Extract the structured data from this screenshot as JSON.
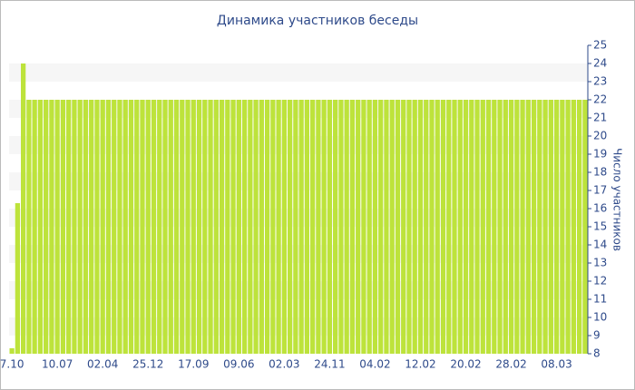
{
  "chart_data": {
    "type": "bar",
    "title": "Динамика участников беседы",
    "y_label": "Число участников",
    "categories": [
      "7.10",
      null,
      null,
      null,
      null,
      null,
      null,
      null,
      "10.07",
      null,
      null,
      null,
      null,
      null,
      null,
      null,
      "02.04",
      null,
      null,
      null,
      null,
      null,
      null,
      null,
      "25.12",
      null,
      null,
      null,
      null,
      null,
      null,
      null,
      "17.09",
      null,
      null,
      null,
      null,
      null,
      null,
      null,
      "09.06",
      null,
      null,
      null,
      null,
      null,
      null,
      null,
      "02.03",
      null,
      null,
      null,
      null,
      null,
      null,
      null,
      "24.11",
      null,
      null,
      null,
      null,
      null,
      null,
      null,
      "04.02",
      null,
      null,
      null,
      null,
      null,
      null,
      null,
      "12.02",
      null,
      null,
      null,
      null,
      null,
      null,
      null,
      "20.02",
      null,
      null,
      null,
      null,
      null,
      null,
      null,
      "28.02",
      null,
      null,
      null,
      null,
      null,
      null,
      null,
      "08.03",
      null,
      null,
      null,
      null,
      null
    ],
    "values": [
      8.3,
      16.3,
      24,
      22,
      22,
      22,
      22,
      22,
      22,
      22,
      22,
      22,
      22,
      22,
      22,
      22,
      22,
      22,
      22,
      22,
      22,
      22,
      22,
      22,
      22,
      22,
      22,
      22,
      22,
      22,
      22,
      22,
      22,
      22,
      22,
      22,
      22,
      22,
      22,
      22,
      22,
      22,
      22,
      22,
      22,
      22,
      22,
      22,
      22,
      22,
      22,
      22,
      22,
      22,
      22,
      22,
      22,
      22,
      22,
      22,
      22,
      22,
      22,
      22,
      22,
      22,
      22,
      22,
      22,
      22,
      22,
      22,
      22,
      22,
      22,
      22,
      22,
      22,
      22,
      22,
      22,
      22,
      22,
      22,
      22,
      22,
      22,
      22,
      22,
      22,
      22,
      22,
      22,
      22,
      22,
      22,
      22,
      22,
      22,
      22,
      22,
      22
    ],
    "color": "#bde33b",
    "ylim": [
      8,
      25
    ],
    "yticks": [
      8,
      9,
      10,
      11,
      12,
      13,
      14,
      15,
      16,
      17,
      18,
      19,
      20,
      21,
      22,
      23,
      24,
      25
    ],
    "grid": true
  }
}
